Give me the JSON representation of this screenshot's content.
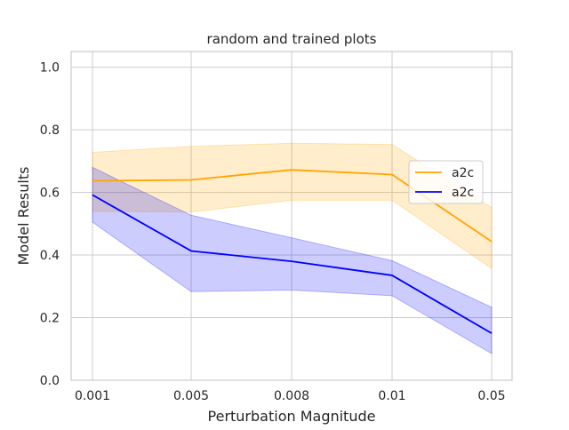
{
  "chart_data": {
    "type": "line",
    "title": "random and trained plots",
    "xlabel": "Perturbation Magnitude",
    "ylabel": "Model Results",
    "categories": [
      "0.001",
      "0.005",
      "0.008",
      "0.01",
      "0.05"
    ],
    "ylim": [
      0.0,
      1.05
    ],
    "yticks": [
      "0.0",
      "0.2",
      "0.4",
      "0.6",
      "0.8",
      "1.0"
    ],
    "grid": true,
    "legend_position": "right",
    "series": [
      {
        "name": "a2c",
        "color": "#ffa500",
        "values": [
          0.637,
          0.64,
          0.672,
          0.657,
          0.443
        ],
        "lower": [
          0.54,
          0.537,
          0.575,
          0.575,
          0.357
        ],
        "upper": [
          0.728,
          0.747,
          0.757,
          0.753,
          0.552
        ]
      },
      {
        "name": "a2c",
        "color": "#0000ff",
        "values": [
          0.592,
          0.413,
          0.38,
          0.335,
          0.15
        ],
        "lower": [
          0.505,
          0.283,
          0.288,
          0.27,
          0.085
        ],
        "upper": [
          0.68,
          0.527,
          0.455,
          0.382,
          0.233
        ]
      }
    ]
  }
}
